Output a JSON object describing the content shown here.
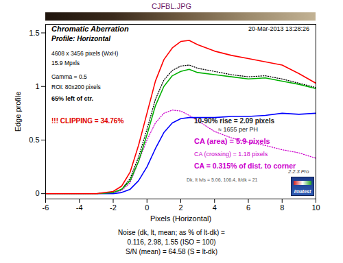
{
  "chart_data": {
    "type": "line",
    "title": "CJFBL.JPG",
    "x_label": "Pixels (Horizontal)",
    "y_label": "Edge profile",
    "x": [
      -6,
      -5,
      -4,
      -3,
      -2,
      -1.5,
      -1,
      -0.5,
      0,
      0.5,
      1,
      1.5,
      2,
      2.5,
      3,
      4,
      5,
      6,
      7,
      8,
      9,
      10
    ],
    "series": [
      {
        "color": "#000000",
        "line_style": "dotted",
        "values": [
          0,
          0,
          0,
          0,
          0.01,
          0.04,
          0.14,
          0.34,
          0.6,
          0.88,
          1.06,
          1.15,
          1.19,
          1.2,
          1.17,
          1.14,
          1.11,
          1.09,
          1.1,
          1.07,
          1.03,
          0.99
        ]
      },
      {
        "color": "#cc00cc",
        "line_style": "dotted",
        "values": [
          0,
          0,
          0,
          0,
          0.01,
          0.03,
          0.1,
          0.3,
          0.5,
          0.66,
          0.75,
          0.78,
          0.77,
          0.73,
          0.68,
          0.58,
          0.52,
          0.48,
          0.45,
          0.41,
          0.38,
          0.33
        ]
      },
      {
        "color": "#0000ff",
        "line_style": "solid",
        "values": [
          0,
          0,
          0,
          0,
          0,
          0.01,
          0.04,
          0.12,
          0.25,
          0.42,
          0.57,
          0.66,
          0.7,
          0.71,
          0.71,
          0.71,
          0.72,
          0.72,
          0.73,
          0.75,
          0.74,
          0.75
        ]
      },
      {
        "color": "#00b000",
        "line_style": "solid",
        "values": [
          0,
          0,
          0,
          0,
          0.01,
          0.04,
          0.12,
          0.3,
          0.55,
          0.82,
          1.0,
          1.1,
          1.14,
          1.16,
          1.13,
          1.11,
          1.09,
          1.07,
          1.08,
          1.05,
          1.02,
          0.98
        ]
      },
      {
        "color": "#ff0000",
        "line_style": "solid",
        "values": [
          0,
          0,
          0,
          0,
          0.02,
          0.07,
          0.2,
          0.45,
          0.75,
          1.05,
          1.25,
          1.36,
          1.42,
          1.43,
          1.39,
          1.33,
          1.29,
          1.26,
          1.23,
          1.2,
          1.12,
          1.03
        ]
      }
    ],
    "xlim": [
      -6,
      10
    ],
    "xticks": [
      -6,
      -4,
      -2,
      0,
      2,
      4,
      6,
      8,
      10
    ],
    "ylim": [
      -0.05,
      1.58
    ],
    "yticks": [
      0,
      0.5,
      1,
      1.5
    ],
    "grid": false,
    "annotations": [
      "Chromatic Aberration",
      "Profile: Horizontal",
      "20-Mar-2013 13:28:26",
      "4608 x 3456 pixels (WxH)",
      "15.9 Mpxls",
      "Gamma = 0.5",
      "ROI: 80x200 pixels",
      "65% left of ctr.",
      "!!! CLIPPING = 34.76%",
      "10-90% rise = 2.09 pixels",
      "≈ 1655 per PH",
      "CA (area) = 5.9 pixels",
      "CA (crossing) = 1.18 pixels",
      "CA = 0.315% of dist. to corner",
      "Dk, lt lvls = 5.06, 106.4, lt/dk = 21",
      "2.2.3 Pro",
      "Imatest"
    ],
    "caption": [
      "Noise (dk, lt, mean; as % of lt-dk) =",
      "0.116, 2.98, 1.55  (ISO = 100)",
      "S/N (mean) = 64.58  (S = lt-dk)"
    ]
  }
}
